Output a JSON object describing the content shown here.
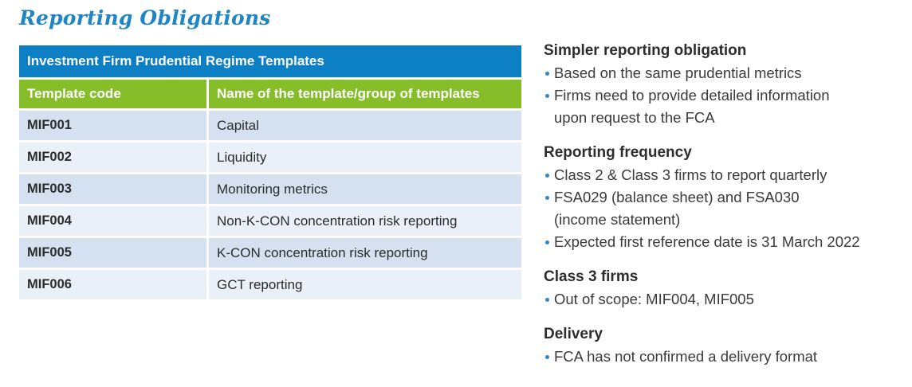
{
  "page": {
    "title": "Reporting Obligations"
  },
  "colors": {
    "title_blue": "#1e86c7",
    "table_header_blue": "#0d80c5",
    "table_subheader_green": "#85be28",
    "row_shade_dark": "#d5e1f1",
    "row_shade_light": "#eaf0f8",
    "bullet_blue": "#2e86c8",
    "body_text": "#3a3a3a"
  },
  "table": {
    "title": "Investment Firm Prudential Regime Templates",
    "columns": [
      "Template code",
      "Name of the template/group of templates"
    ],
    "rows": [
      {
        "code": "MIF001",
        "name": "Capital"
      },
      {
        "code": "MIF002",
        "name": "Liquidity"
      },
      {
        "code": "MIF003",
        "name": "Monitoring metrics"
      },
      {
        "code": "MIF004",
        "name": "Non-K-CON concentration risk reporting"
      },
      {
        "code": "MIF005",
        "name": "K-CON concentration risk reporting"
      },
      {
        "code": "MIF006",
        "name": "GCT reporting"
      }
    ]
  },
  "sections": [
    {
      "heading": "Simpler reporting obligation",
      "bullets": [
        "Based on the same prudential metrics",
        "Firms need to provide detailed information\nupon request to the FCA"
      ]
    },
    {
      "heading": "Reporting frequency",
      "bullets": [
        "Class 2 & Class 3 firms to report quarterly",
        "FSA029 (balance sheet) and FSA030\n(income statement)",
        "Expected first reference date is 31 March 2022"
      ]
    },
    {
      "heading": "Class 3 firms",
      "bullets": [
        "Out of scope: MIF004, MIF005"
      ]
    },
    {
      "heading": "Delivery",
      "bullets": [
        "FCA has not confirmed a delivery format"
      ]
    }
  ]
}
